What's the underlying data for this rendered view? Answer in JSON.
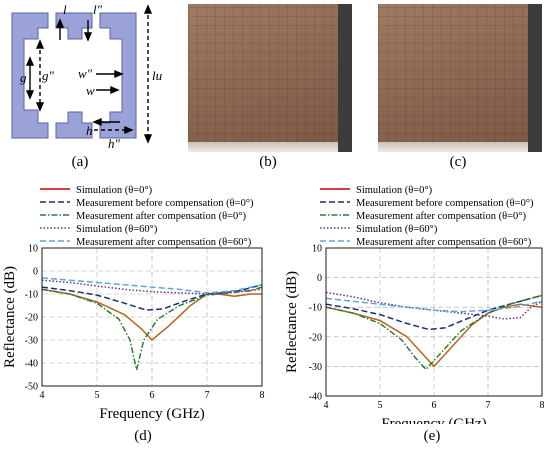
{
  "captions": {
    "a": "(a)",
    "b": "(b)",
    "c": "(c)",
    "d": "(d)",
    "e": "(e)"
  },
  "unit_cell": {
    "labels": {
      "l": "l",
      "l2": "l″",
      "g": "g",
      "g2": "g″",
      "w2": "w″",
      "w": "w",
      "lu": "lu",
      "h": "h",
      "h2": "h″"
    },
    "colors": {
      "fill": "#9aa2d8",
      "stroke": "#5a62a8"
    }
  },
  "photo_colors": {
    "base": "#8e6a55",
    "dark": "#6e4c3a",
    "ruler": "#3c3c3c"
  },
  "legend": [
    {
      "label": "Simulation (θ=0°)",
      "color": "#cc0000",
      "dash": ""
    },
    {
      "label": "Measurement before compensation (θ=0°)",
      "color": "#1a2f7a",
      "dash": "6,3"
    },
    {
      "label": "Measurement after compensation (θ=0°)",
      "color": "#2e7d32",
      "dash": "6,2,1.5,2"
    },
    {
      "label": "Simulation (θ=60°)",
      "color": "#7a2a8a",
      "dash": "1.5,2"
    },
    {
      "label": "Measurement after compensation (θ=60°)",
      "color": "#5aa9d6",
      "dash": "6,3"
    }
  ],
  "chart_data": [
    {
      "type": "line",
      "panel": "(d)",
      "xlabel": "Frequency (GHz)",
      "ylabel": "Reflectance (dB)",
      "xlim": [
        4,
        8
      ],
      "ylim": [
        -50,
        10
      ],
      "xticks": [
        "4",
        "5",
        "6",
        "7",
        "8"
      ],
      "yticks": [
        "10",
        "0",
        "-10",
        "-20",
        "-30",
        "-40",
        "-50"
      ],
      "grid": true,
      "series": [
        {
          "name": "Simulation (θ=0°)",
          "color": "#b5651d",
          "dash": "",
          "x": [
            4,
            4.5,
            5,
            5.5,
            5.8,
            6.0,
            6.3,
            6.7,
            7.0,
            7.2,
            7.5,
            7.8,
            8
          ],
          "y": [
            -8,
            -10,
            -13.5,
            -19,
            -25,
            -30,
            -24,
            -15,
            -10,
            -10,
            -11,
            -10,
            -10
          ]
        },
        {
          "name": "Measurement before compensation (θ=0°)",
          "color": "#1a2f7a",
          "dash": "6,3",
          "x": [
            4,
            4.5,
            5,
            5.5,
            5.9,
            6.2,
            6.6,
            7.0,
            7.3,
            7.6,
            8
          ],
          "y": [
            -7,
            -8.5,
            -10.5,
            -14,
            -17,
            -16.5,
            -13,
            -10,
            -9.5,
            -8.5,
            -6
          ]
        },
        {
          "name": "Measurement after compensation (θ=0°)",
          "color": "#2e7d32",
          "dash": "6,2,1.5,2",
          "x": [
            4,
            4.5,
            5,
            5.4,
            5.6,
            5.72,
            5.85,
            6.1,
            6.5,
            7.0,
            7.4,
            7.8,
            8
          ],
          "y": [
            -8,
            -10,
            -14,
            -21,
            -30,
            -43,
            -30,
            -21,
            -15,
            -10.5,
            -9.5,
            -8.5,
            -7
          ]
        },
        {
          "name": "Simulation (θ=60°)",
          "color": "#7a2a8a",
          "dash": "1.5,2",
          "x": [
            4,
            4.5,
            5,
            5.5,
            6,
            6.5,
            7,
            7.5,
            8
          ],
          "y": [
            -4,
            -5,
            -6.5,
            -8,
            -9,
            -9.5,
            -10,
            -9,
            -8
          ]
        },
        {
          "name": "Measurement after compensation (θ=60°)",
          "color": "#5aa9d6",
          "dash": "6,3",
          "x": [
            4,
            4.5,
            5,
            5.5,
            6,
            6.5,
            7,
            7.5,
            8
          ],
          "y": [
            -3,
            -4,
            -5,
            -6,
            -7,
            -8,
            -9.5,
            -8.5,
            -6
          ]
        }
      ]
    },
    {
      "type": "line",
      "panel": "(e)",
      "xlabel": "Frequency (GHz)",
      "ylabel": "Reflectance (dB)",
      "xlim": [
        4,
        8
      ],
      "ylim": [
        -40,
        10
      ],
      "xticks": [
        "4",
        "5",
        "6",
        "7",
        "8"
      ],
      "yticks": [
        "10",
        "0",
        "-10",
        "-20",
        "-30",
        "-40"
      ],
      "grid": true,
      "series": [
        {
          "name": "Simulation (θ=0°)",
          "color": "#b5651d",
          "dash": "",
          "x": [
            4,
            4.5,
            5,
            5.5,
            5.8,
            6.0,
            6.3,
            6.7,
            7.0,
            7.3,
            7.6,
            8
          ],
          "y": [
            -10,
            -12,
            -14.5,
            -20,
            -26,
            -30,
            -24,
            -16,
            -12,
            -10,
            -9,
            -10
          ]
        },
        {
          "name": "Measurement before compensation (θ=0°)",
          "color": "#1a2f7a",
          "dash": "6,3",
          "x": [
            4,
            4.5,
            5,
            5.5,
            5.9,
            6.2,
            6.6,
            7.0,
            7.4,
            7.7,
            8
          ],
          "y": [
            -9,
            -10.5,
            -12.5,
            -15.5,
            -17.5,
            -17,
            -14,
            -11,
            -9,
            -7.5,
            -6
          ]
        },
        {
          "name": "Measurement after compensation (θ=0°)",
          "color": "#2e7d32",
          "dash": "6,2,1.5,2",
          "x": [
            4,
            4.5,
            5,
            5.4,
            5.65,
            5.85,
            6.1,
            6.5,
            7.0,
            7.4,
            7.8,
            8
          ],
          "y": [
            -10,
            -12,
            -15.5,
            -21,
            -27,
            -31,
            -26,
            -18,
            -12,
            -9,
            -7,
            -6
          ]
        },
        {
          "name": "Simulation (θ=60°)",
          "color": "#7a2a8a",
          "dash": "1.5,2",
          "x": [
            4,
            4.5,
            5,
            5.5,
            6,
            6.5,
            7,
            7.3,
            7.6,
            7.8,
            8
          ],
          "y": [
            -5,
            -6.5,
            -8.5,
            -10,
            -11,
            -12,
            -13,
            -14,
            -13.5,
            -10,
            -8
          ]
        },
        {
          "name": "Measurement after compensation (θ=60°)",
          "color": "#5aa9d6",
          "dash": "6,3",
          "x": [
            4,
            4.5,
            5,
            5.5,
            6,
            6.5,
            7,
            7.5,
            8
          ],
          "y": [
            -7,
            -8,
            -9,
            -10,
            -11,
            -11.5,
            -11,
            -10,
            -8
          ]
        }
      ]
    }
  ]
}
